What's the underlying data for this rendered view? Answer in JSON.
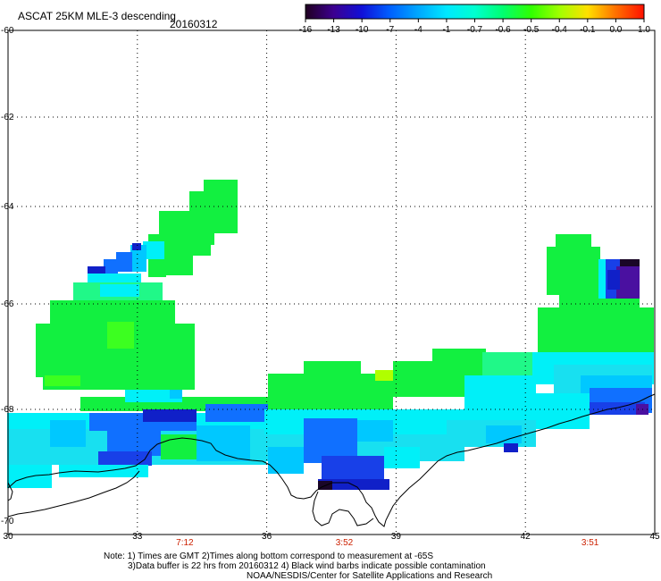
{
  "header": {
    "product_title": "ASCAT 25KM MLE-3 descending",
    "date": "20160312"
  },
  "colorbar": {
    "labels": [
      "-16",
      "-13",
      "-10",
      "-7",
      "-4",
      "-1",
      "-0.7",
      "-0.6",
      "-0.5",
      "-0.4",
      "-0.1",
      "0.0",
      "1.0"
    ],
    "stops": [
      "#200020",
      "#3c0090",
      "#1010d8",
      "#0060ff",
      "#00a8ff",
      "#00e8ff",
      "#00ffd0",
      "#00ff70",
      "#30ff00",
      "#a0ff00",
      "#ffe000",
      "#ff7000",
      "#ff1000"
    ]
  },
  "map": {
    "lon_range": [
      30,
      45
    ],
    "lat_range": [
      -60,
      -70
    ],
    "lon_ticks": [
      "30",
      "33",
      "36",
      "39",
      "42",
      "45"
    ],
    "lat_ticks": [
      "-60",
      "-62",
      "-64",
      "-66",
      "-68",
      "-70"
    ],
    "time_labels": [
      {
        "lon": 34.1,
        "text": "7:12"
      },
      {
        "lon": 37.8,
        "text": "3:52"
      },
      {
        "lon": 43.5,
        "text": "3:51"
      }
    ],
    "time_color": "#cc2000"
  },
  "notes": {
    "line1": "Note: 1) Times are GMT 2)Times along bottom correspond to measurement at -65S",
    "line2": "3)Data buffer is 22 hrs from 20160312 4) Black wind barbs indicate possible contamination",
    "line3": "NOAA/NESDIS/Center for Satellite Applications and Research"
  }
}
